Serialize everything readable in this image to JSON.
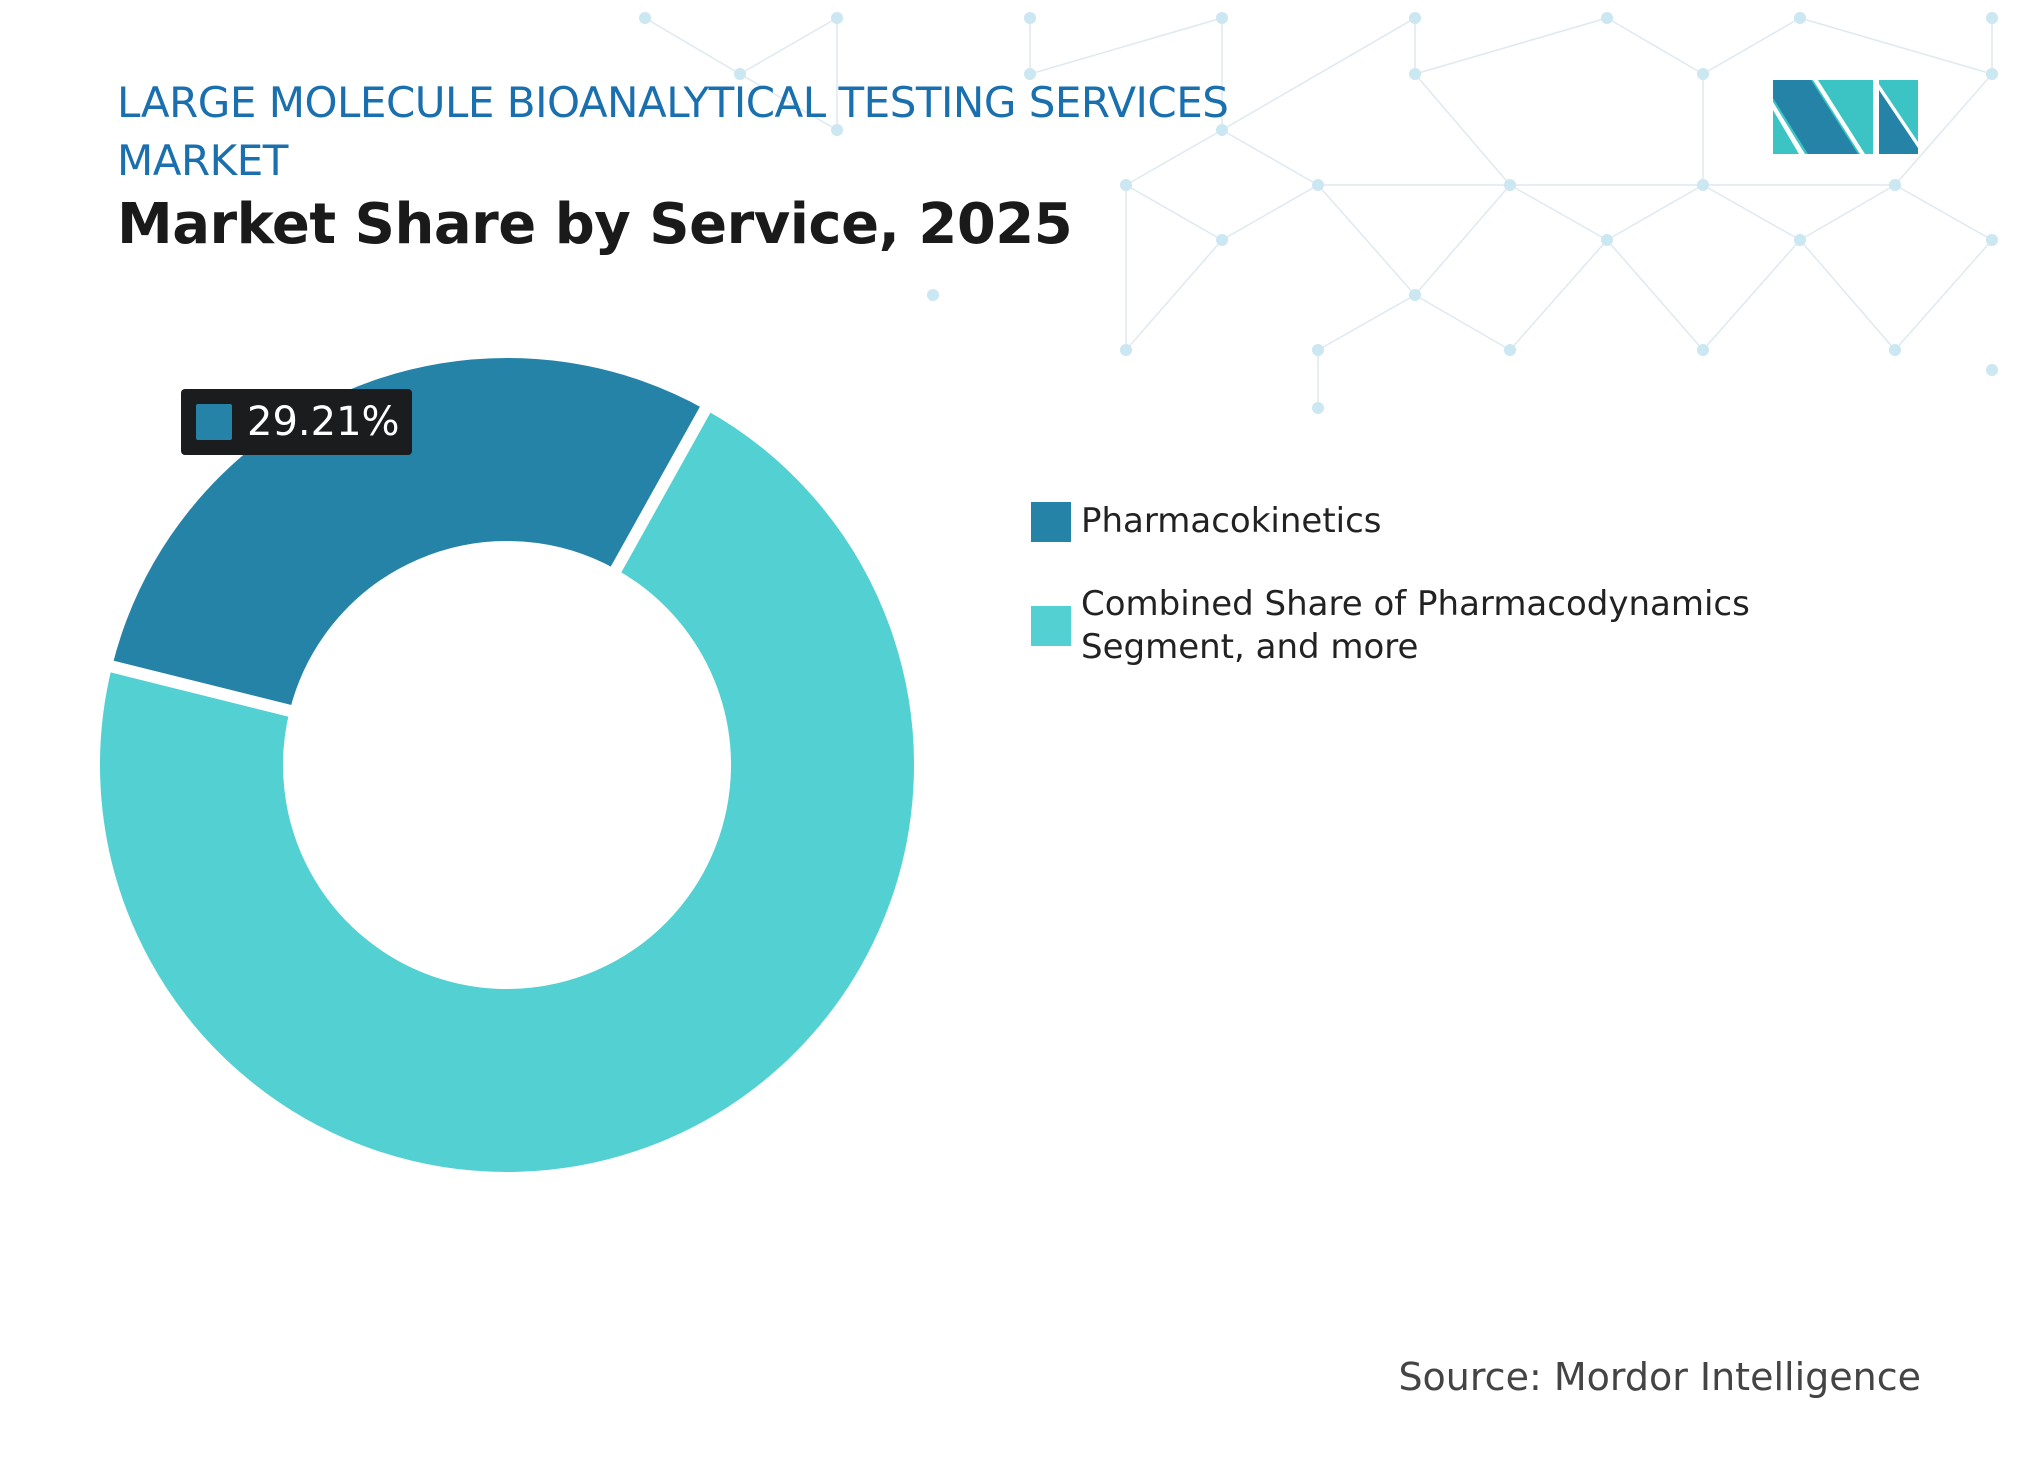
{
  "header": {
    "title": "LARGE MOLECULE BIOANALYTICAL TESTING SERVICES MARKET",
    "subtitle": "Market Share by Service, 2025"
  },
  "chart_data": {
    "type": "pie",
    "donut": true,
    "categories": [
      "Pharmacokinetics",
      "Combined Share of Pharmacodynamics Segment, and more"
    ],
    "values": [
      29.21,
      70.79
    ],
    "colors": [
      "#2683a8",
      "#52d0d2"
    ],
    "data_labels": [
      {
        "category": "Pharmacokinetics",
        "text": "29.21%"
      }
    ],
    "legend_position": "right"
  },
  "source": "Source: Mordor Intelligence",
  "logo": {
    "text": "MI",
    "colors": [
      "#2683a8",
      "#3cc4c4"
    ]
  }
}
